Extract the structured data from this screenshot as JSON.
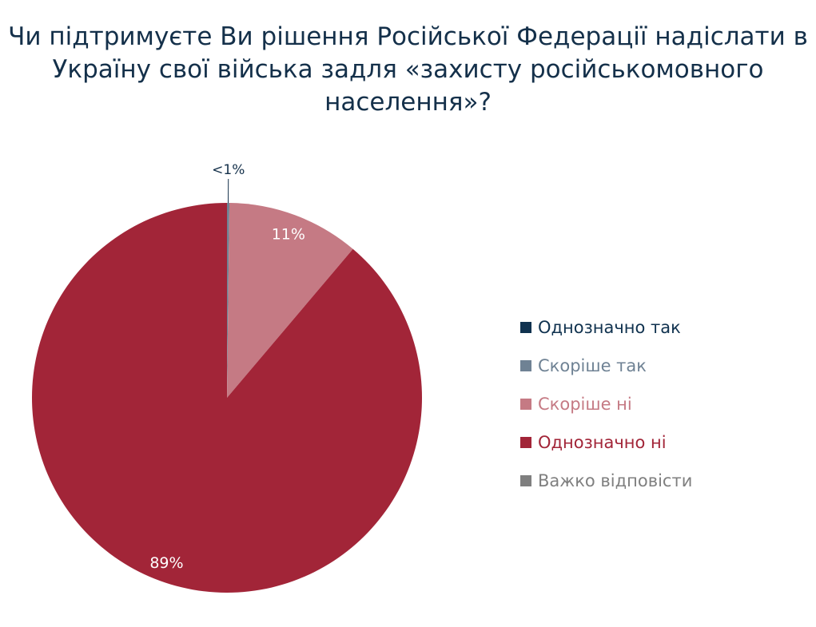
{
  "title_lines": [
    "Чи підтримуєте Ви рішення Російської Федерації надіслати в",
    "Україну свої війська задля «захисту російськомовного",
    "населення»?"
  ],
  "chart_data": {
    "type": "pie",
    "title": "Чи підтримуєте Ви рішення Російської Федерації надіслати в Україну свої війська задля «захисту російськомовного населення»?",
    "categories": [
      "Однозначно так",
      "Скоріше так",
      "Скоріше ні",
      "Однозначно ні",
      "Важко відповісти"
    ],
    "values": [
      0,
      0.2,
      11,
      89,
      0
    ],
    "data_labels": [
      "",
      "<1%",
      "11%",
      "89%",
      ""
    ],
    "colors": [
      "#10324f",
      "#6f8294",
      "#c57a84",
      "#a22538",
      "#7f7f7f"
    ],
    "legend_text_colors": [
      "#10324f",
      "#6f8294",
      "#c57a84",
      "#a22538",
      "#7f7f7f"
    ],
    "legend": "right"
  }
}
